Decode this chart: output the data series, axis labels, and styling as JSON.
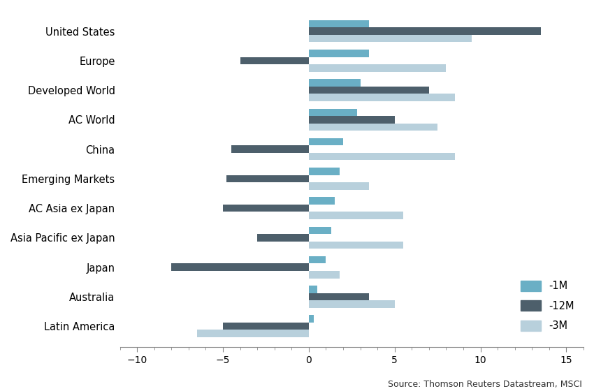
{
  "categories": [
    "United States",
    "Europe",
    "Developed World",
    "AC World",
    "China",
    "Emerging Markets",
    "AC Asia ex Japan",
    "Asia Pacific ex Japan",
    "Japan",
    "Australia",
    "Latin America"
  ],
  "series": {
    "-1M": [
      3.5,
      3.5,
      3.0,
      2.8,
      2.0,
      1.8,
      1.5,
      1.3,
      1.0,
      0.5,
      0.3
    ],
    "-12M": [
      13.5,
      -4.0,
      7.0,
      5.0,
      -4.5,
      -4.8,
      -5.0,
      -3.0,
      -8.0,
      3.5,
      -5.0
    ],
    "-3M": [
      9.5,
      8.0,
      8.5,
      7.5,
      8.5,
      3.5,
      5.5,
      5.5,
      1.8,
      5.0,
      -6.5
    ]
  },
  "colors": {
    "-1M": "#6aafc5",
    "-12M": "#4d5f6b",
    "-3M": "#b8d0dc"
  },
  "xlim": [
    -11,
    16
  ],
  "xticks": [
    -10,
    -5,
    0,
    5,
    10,
    15
  ],
  "source": "Source: Thomson Reuters Datastream, MSCI",
  "legend_order": [
    "-1M",
    "-12M",
    "-3M"
  ],
  "bar_height": 0.25,
  "background_color": "#ffffff"
}
